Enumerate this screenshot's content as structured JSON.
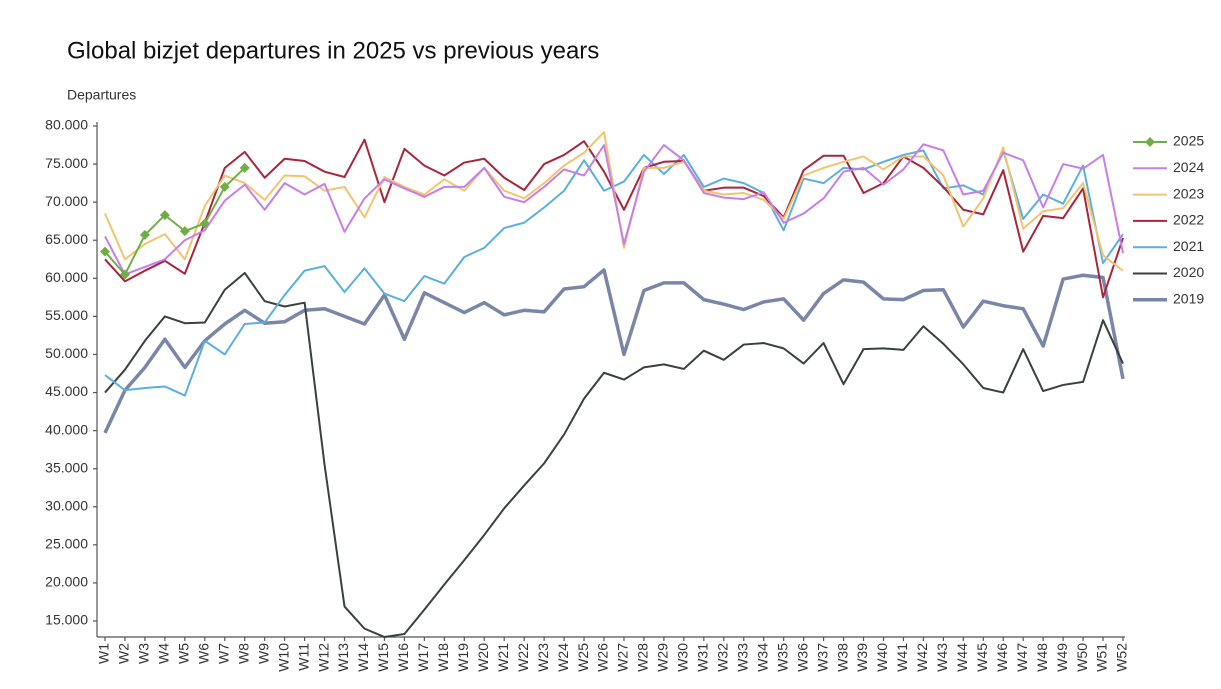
{
  "chart_data": {
    "type": "line",
    "title": "Global bizjet departures in 2025 vs previous years",
    "y_label": "Departures",
    "categories": [
      "W1",
      "W2",
      "W3",
      "W4",
      "W5",
      "W6",
      "W7",
      "W8",
      "W9",
      "W10",
      "W11",
      "W12",
      "W13",
      "W14",
      "W15",
      "W16",
      "W17",
      "W18",
      "W19",
      "W20",
      "W21",
      "W22",
      "W23",
      "W24",
      "W25",
      "W26",
      "W27",
      "W28",
      "W29",
      "W30",
      "W31",
      "W32",
      "W33",
      "W34",
      "W35",
      "W36",
      "W37",
      "W38",
      "W39",
      "W40",
      "W41",
      "W42",
      "W43",
      "W44",
      "W45",
      "W46",
      "W47",
      "W48",
      "W49",
      "W50",
      "W51",
      "W52"
    ],
    "ylim": [
      12900,
      80000
    ],
    "yticks": [
      {
        "value": 15000,
        "label": "15.000"
      },
      {
        "value": 20000,
        "label": "20.000"
      },
      {
        "value": 25000,
        "label": "25.000"
      },
      {
        "value": 30000,
        "label": "30.000"
      },
      {
        "value": 35000,
        "label": "35.000"
      },
      {
        "value": 40000,
        "label": "40.000"
      },
      {
        "value": 45000,
        "label": "45.000"
      },
      {
        "value": 50000,
        "label": "50.000"
      },
      {
        "value": 55000,
        "label": "55.000"
      },
      {
        "value": 60000,
        "label": "60.000"
      },
      {
        "value": 65000,
        "label": "65.000"
      },
      {
        "value": 70000,
        "label": "70.000"
      },
      {
        "value": 75000,
        "label": "75.000"
      },
      {
        "value": 80000,
        "label": "80.000"
      }
    ],
    "legend": "right",
    "series": [
      {
        "name": "2025",
        "color": "#70ad47",
        "width": 2,
        "marker": "diamond",
        "values": [
          63500,
          60500,
          65700,
          68300,
          66200,
          67200,
          72000,
          74500,
          null,
          null,
          null,
          null,
          null,
          null,
          null,
          null,
          null,
          null,
          null,
          null,
          null,
          null,
          null,
          null,
          null,
          null,
          null,
          null,
          null,
          null,
          null,
          null,
          null,
          null,
          null,
          null,
          null,
          null,
          null,
          null,
          null,
          null,
          null,
          null,
          null,
          null,
          null,
          null,
          null,
          null,
          null,
          null
        ]
      },
      {
        "name": "2024",
        "color": "#c77ee8",
        "width": 2,
        "values": [
          65500,
          60500,
          61500,
          62500,
          65000,
          66300,
          70200,
          72300,
          69000,
          72500,
          71000,
          72400,
          66100,
          70500,
          73000,
          71800,
          70700,
          72000,
          72000,
          74500,
          70700,
          70000,
          72000,
          74300,
          73500,
          77500,
          64500,
          74000,
          77500,
          75500,
          71200,
          70600,
          70400,
          71300,
          67300,
          68500,
          70500,
          74000,
          74500,
          72300,
          74300,
          77600,
          76800,
          71000,
          71500,
          76500,
          75500,
          69300,
          75000,
          74400,
          76200,
          63300
        ]
      },
      {
        "name": "2023",
        "color": "#f2c46f",
        "width": 2,
        "values": [
          68500,
          62500,
          64500,
          65800,
          62500,
          69500,
          73500,
          72500,
          70300,
          73500,
          73400,
          71500,
          72000,
          68000,
          73300,
          72000,
          71000,
          73000,
          71500,
          74500,
          71500,
          70500,
          72500,
          74800,
          76500,
          79200,
          64000,
          74500,
          74500,
          75300,
          71500,
          71000,
          71200,
          70300,
          67800,
          73500,
          74500,
          75300,
          76000,
          74300,
          76000,
          76000,
          73500,
          66800,
          70500,
          77200,
          66500,
          68800,
          69200,
          72500,
          63000,
          61000
        ]
      },
      {
        "name": "2022",
        "color": "#a8253c",
        "width": 2,
        "values": [
          62500,
          59600,
          61000,
          62300,
          60600,
          67300,
          74500,
          76600,
          73200,
          75700,
          75400,
          74000,
          73300,
          78200,
          70000,
          77000,
          74800,
          73500,
          75200,
          75700,
          73200,
          71600,
          75000,
          76200,
          78000,
          74000,
          69000,
          74500,
          75300,
          75400,
          71500,
          71900,
          71900,
          70800,
          68000,
          74200,
          76100,
          76100,
          71200,
          72500,
          76000,
          74500,
          72000,
          69000,
          68400,
          74200,
          63500,
          68200,
          67900,
          71800,
          57500,
          65300
        ]
      },
      {
        "name": "2021",
        "color": "#5aafe0",
        "width": 2,
        "values": [
          47300,
          45300,
          45600,
          45800,
          44600,
          51800,
          50000,
          54000,
          54200,
          57800,
          61000,
          61600,
          58200,
          61300,
          58000,
          57000,
          60300,
          59300,
          62800,
          64000,
          66600,
          67300,
          69300,
          71500,
          75500,
          71500,
          72700,
          76200,
          73700,
          76200,
          72000,
          73100,
          72500,
          71200,
          66300,
          73100,
          72500,
          74500,
          74300,
          75300,
          76200,
          76800,
          71800,
          72200,
          71000,
          76800,
          67800,
          71000,
          69800,
          74800,
          62000,
          65800
        ]
      },
      {
        "name": "2020",
        "color": "#3a3f3f",
        "width": 2,
        "values": [
          45000,
          48000,
          51800,
          55000,
          54100,
          54200,
          58500,
          60700,
          57000,
          56300,
          56800,
          35500,
          16900,
          14000,
          12900,
          13300,
          16500,
          19800,
          23000,
          26300,
          29800,
          32800,
          35700,
          39500,
          44200,
          47600,
          46700,
          48300,
          48700,
          48100,
          50500,
          49300,
          51300,
          51500,
          50800,
          48800,
          51500,
          46100,
          50700,
          50800,
          50600,
          53700,
          51400,
          48700,
          45600,
          45000,
          50700,
          45200,
          46000,
          46400,
          54500,
          48800
        ]
      },
      {
        "name": "2019",
        "color": "#7986a8",
        "width": 3.5,
        "values": [
          39700,
          45300,
          48300,
          52000,
          48300,
          51800,
          54000,
          55800,
          54100,
          54300,
          55800,
          56000,
          55000,
          54000,
          57800,
          52000,
          58100,
          56800,
          55500,
          56800,
          55200,
          55800,
          55600,
          58600,
          58900,
          61100,
          50000,
          58400,
          59400,
          59400,
          57200,
          56600,
          55900,
          56900,
          57300,
          54500,
          58000,
          59800,
          59500,
          57300,
          57200,
          58400,
          58500,
          53600,
          57000,
          56400,
          56000,
          51100,
          59900,
          60400,
          60100,
          46800
        ]
      }
    ]
  }
}
